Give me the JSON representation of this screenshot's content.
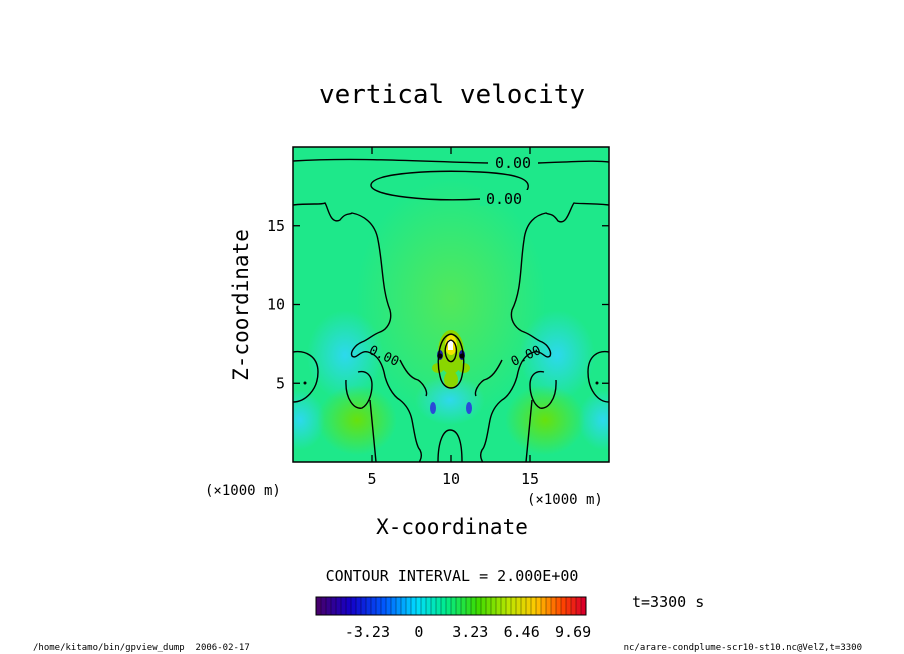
{
  "chart_data": {
    "type": "heatmap",
    "title": "vertical velocity",
    "xlabel": "X-coordinate",
    "ylabel": "Z-coordinate",
    "x_unit": "(×1000 m)",
    "z_unit": "(×1000 m)",
    "xlim": [
      0,
      20
    ],
    "ylim": [
      0,
      20
    ],
    "x_ticks": [
      5,
      10,
      15
    ],
    "y_ticks": [
      5,
      10,
      15
    ],
    "contour_labels": [
      "0.00",
      "0.00",
      "0.00",
      "0.00"
    ],
    "contour_interval_text": "CONTOUR INTERVAL = 2.000E+00",
    "colorbar": {
      "tick_labels": [
        "-3.23",
        "0",
        "3.23",
        "6.46",
        "9.69"
      ],
      "tick_values": [
        -3.23,
        0,
        3.23,
        6.46,
        9.69
      ],
      "range": [
        -6.46,
        10.5
      ]
    },
    "time_label": "t=3300 s",
    "footer_left": "/home/kitamo/bin/gpview_dump  2006-02-17",
    "footer_right": "nc/arare-condplume-scr10-st10.nc@VelZ,t=3300"
  }
}
